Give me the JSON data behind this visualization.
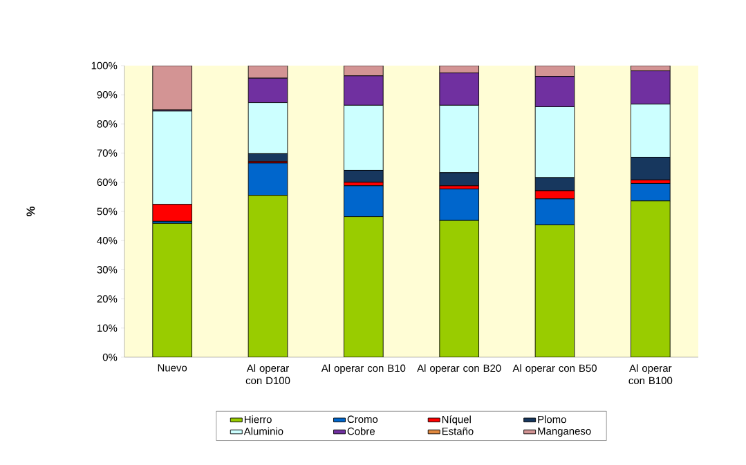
{
  "chart_data": {
    "type": "bar",
    "stacked": true,
    "ylabel": "%",
    "legend": "bottom",
    "categories": [
      "Nuevo",
      "Al operar con D100",
      "Al operar con B10",
      "Al operar con B20",
      "Al operar con B50",
      "Al operar con B100"
    ],
    "series": [
      {
        "name": "Hierro",
        "color": "#99cc00",
        "values": [
          45.9,
          55.5,
          48.2,
          46.9,
          45.4,
          53.6
        ]
      },
      {
        "name": "Cromo",
        "color": "#0066cc",
        "values": [
          0.7,
          11.1,
          10.6,
          10.8,
          8.9,
          6.0
        ]
      },
      {
        "name": "Níquel",
        "color": "#ff0000",
        "values": [
          5.8,
          0.5,
          1.2,
          1.1,
          2.8,
          1.2
        ]
      },
      {
        "name": "Plomo",
        "color": "#17375e",
        "values": [
          0,
          2.7,
          4.1,
          4.5,
          4.5,
          7.8
        ]
      },
      {
        "name": "Aluminio",
        "color": "#ccffff",
        "values": [
          32.0,
          17.5,
          22.3,
          23.1,
          24.3,
          18.2
        ]
      },
      {
        "name": "Cobre",
        "color": "#7030a0",
        "values": [
          0.4,
          8.4,
          10.1,
          11.1,
          10.4,
          11.4
        ]
      },
      {
        "name": "Estaño",
        "color": "#e0883e",
        "values": [
          0,
          0,
          0,
          0,
          0,
          0
        ]
      },
      {
        "name": "Manganeso",
        "color": "#d39494",
        "values": [
          15.2,
          4.3,
          3.5,
          2.5,
          3.7,
          1.8
        ]
      }
    ],
    "ylim": [
      0,
      100
    ],
    "yticks": [
      {
        "value": 0,
        "label": "0%"
      },
      {
        "value": 10,
        "label": "10%"
      },
      {
        "value": 20,
        "label": "20%"
      },
      {
        "value": 30,
        "label": "30%"
      },
      {
        "value": 40,
        "label": "40%"
      },
      {
        "value": 50,
        "label": "50%"
      },
      {
        "value": 60,
        "label": "60%"
      },
      {
        "value": 70,
        "label": "70%"
      },
      {
        "value": 80,
        "label": "80%"
      },
      {
        "value": 90,
        "label": "90%"
      },
      {
        "value": 100,
        "label": "100%"
      }
    ]
  }
}
